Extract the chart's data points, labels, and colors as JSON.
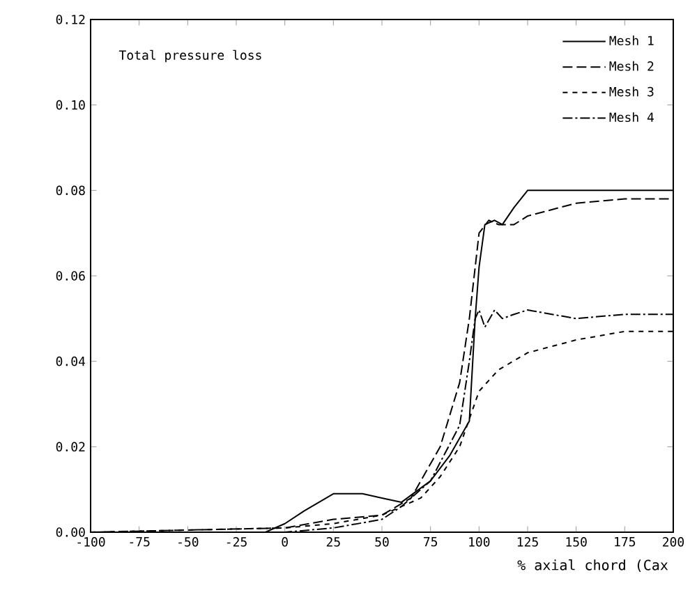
{
  "chart_data": {
    "type": "line",
    "xlabel": "% axial chord (Cax",
    "annotations": [
      "Total pressure loss"
    ],
    "xlim": [
      -100,
      200
    ],
    "ylim": [
      0,
      0.12
    ],
    "xticks": [
      -100,
      -75,
      -50,
      -25,
      0,
      25,
      50,
      75,
      100,
      125,
      150,
      175,
      200
    ],
    "yticks": [
      {
        "value": 0,
        "label": "0.00"
      },
      {
        "value": 0.02,
        "label": "0.02"
      },
      {
        "value": 0.04,
        "label": "0.04"
      },
      {
        "value": 0.06,
        "label": "0.06"
      },
      {
        "value": 0.08,
        "label": "0.08"
      },
      {
        "value": 0.1,
        "label": "0.10"
      },
      {
        "value": 0.12,
        "label": "0.12"
      }
    ],
    "legend": "top right",
    "grid": false,
    "series": [
      {
        "name": "Mesh 1",
        "color": "#000000",
        "line_style": "solid",
        "x": [
          -100,
          -10,
          0,
          10,
          25,
          40,
          50,
          60,
          75,
          85,
          95,
          98,
          100,
          103,
          108,
          112,
          118,
          125,
          130,
          150,
          175,
          200
        ],
        "values": [
          0,
          0,
          0.002,
          0.005,
          0.009,
          0.009,
          0.008,
          0.007,
          0.012,
          0.018,
          0.026,
          0.05,
          0.062,
          0.072,
          0.073,
          0.072,
          0.076,
          0.08,
          0.08,
          0.08,
          0.08,
          0.08
        ]
      },
      {
        "name": "Mesh 2",
        "color": "#000000",
        "line_style": "dashed",
        "x": [
          -100,
          0,
          25,
          50,
          65,
          80,
          90,
          95,
          100,
          105,
          110,
          118,
          125,
          150,
          175,
          200
        ],
        "values": [
          0,
          0.001,
          0.003,
          0.004,
          0.008,
          0.02,
          0.035,
          0.05,
          0.07,
          0.073,
          0.072,
          0.072,
          0.074,
          0.077,
          0.078,
          0.078
        ]
      },
      {
        "name": "Mesh 3",
        "color": "#000000",
        "line_style": "dotted",
        "x": [
          -100,
          0,
          25,
          50,
          60,
          70,
          80,
          90,
          100,
          110,
          125,
          150,
          175,
          200
        ],
        "values": [
          0,
          0.001,
          0.002,
          0.004,
          0.006,
          0.008,
          0.013,
          0.02,
          0.033,
          0.038,
          0.042,
          0.045,
          0.047,
          0.047
        ]
      },
      {
        "name": "Mesh 4",
        "color": "#000000",
        "line_style": "dashdot",
        "x": [
          -100,
          0,
          25,
          50,
          60,
          75,
          90,
          95,
          98,
          100,
          103,
          108,
          112,
          118,
          125,
          150,
          175,
          200
        ],
        "values": [
          0,
          0,
          0.001,
          0.003,
          0.006,
          0.012,
          0.025,
          0.04,
          0.05,
          0.052,
          0.048,
          0.052,
          0.05,
          0.051,
          0.052,
          0.05,
          0.051,
          0.051
        ]
      }
    ]
  }
}
